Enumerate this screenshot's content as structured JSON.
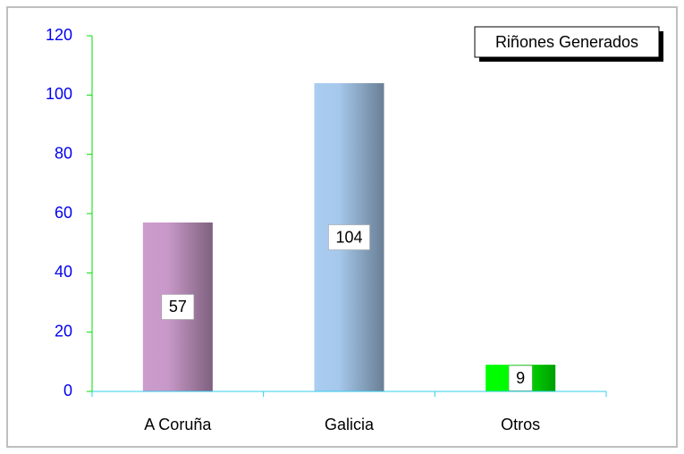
{
  "chart_data": {
    "type": "bar",
    "categories": [
      "A Coruña",
      "Galicia",
      "Otros"
    ],
    "series": [
      {
        "name": "Riñones Generados",
        "values": [
          57,
          104,
          9
        ],
        "colors": [
          "#cc9ccc",
          "#a9ccf0",
          "#00ff00"
        ]
      }
    ],
    "ylim": [
      0,
      120
    ],
    "yticks": [
      0,
      20,
      40,
      60,
      80,
      100,
      120
    ],
    "legend_position": "upper right",
    "data_labels": true
  }
}
